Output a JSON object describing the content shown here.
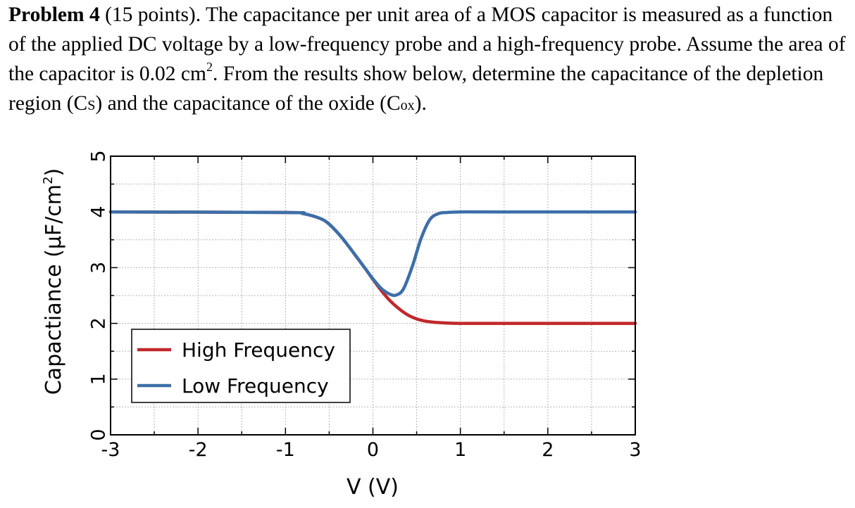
{
  "problem": {
    "label": "Problem 4",
    "points": "(15 points).",
    "text_part1": " The capacitance per unit area of a MOS capacitor is measured as a function of the applied DC voltage by a low-frequency probe and a high-frequency probe. Assume the area of the capacitor is 0.02 cm",
    "text_sup": "2",
    "text_part2": ". From the results show below, determine the capacitance of the depletion region (C",
    "cs_sub": "S",
    "text_part3": ") and the capacitance of the oxide (C",
    "cox_sub": "ox",
    "text_part4": ")."
  },
  "chart_data": {
    "type": "line",
    "xlabel": "V (V)",
    "ylabel": "Capactiance (μF/cm",
    "ylabel_sup": "2",
    "ylabel_close": ")",
    "xlim": [
      -3,
      3
    ],
    "ylim": [
      0,
      5
    ],
    "xticks": [
      -3,
      -2,
      -1,
      0,
      1,
      2,
      3
    ],
    "yticks": [
      0,
      1,
      2,
      3,
      4,
      5
    ],
    "xtick_labels": [
      "-3",
      "-2",
      "-1",
      "0",
      "1",
      "2",
      "3"
    ],
    "ytick_labels": [
      "0",
      "1",
      "2",
      "3",
      "4",
      "5"
    ],
    "grid": true,
    "legend_position": "lower-left",
    "series": [
      {
        "name": "High Frequency",
        "color": "#c0282d",
        "x": [
          -3.0,
          -1.0,
          -0.8,
          -0.6,
          -0.5,
          -0.4,
          -0.3,
          -0.2,
          -0.1,
          0.0,
          0.1,
          0.2,
          0.3,
          0.4,
          0.5,
          0.6,
          0.7,
          0.8,
          1.0,
          1.5,
          3.0
        ],
        "y": [
          4.0,
          3.99,
          3.97,
          3.88,
          3.78,
          3.62,
          3.43,
          3.22,
          3.01,
          2.79,
          2.58,
          2.4,
          2.26,
          2.15,
          2.08,
          2.04,
          2.02,
          2.01,
          2.0,
          2.0,
          2.0
        ]
      },
      {
        "name": "Low Frequency",
        "color": "#3c6fa8",
        "x": [
          -3.0,
          -1.0,
          -0.8,
          -0.6,
          -0.5,
          -0.4,
          -0.3,
          -0.2,
          -0.1,
          0.0,
          0.1,
          0.2,
          0.27,
          0.35,
          0.45,
          0.55,
          0.65,
          0.75,
          0.85,
          1.0,
          1.5,
          3.0
        ],
        "y": [
          4.0,
          3.99,
          3.97,
          3.88,
          3.78,
          3.62,
          3.43,
          3.22,
          3.01,
          2.8,
          2.62,
          2.52,
          2.51,
          2.62,
          3.02,
          3.52,
          3.86,
          3.97,
          3.99,
          4.0,
          4.0,
          4.0
        ]
      }
    ]
  }
}
